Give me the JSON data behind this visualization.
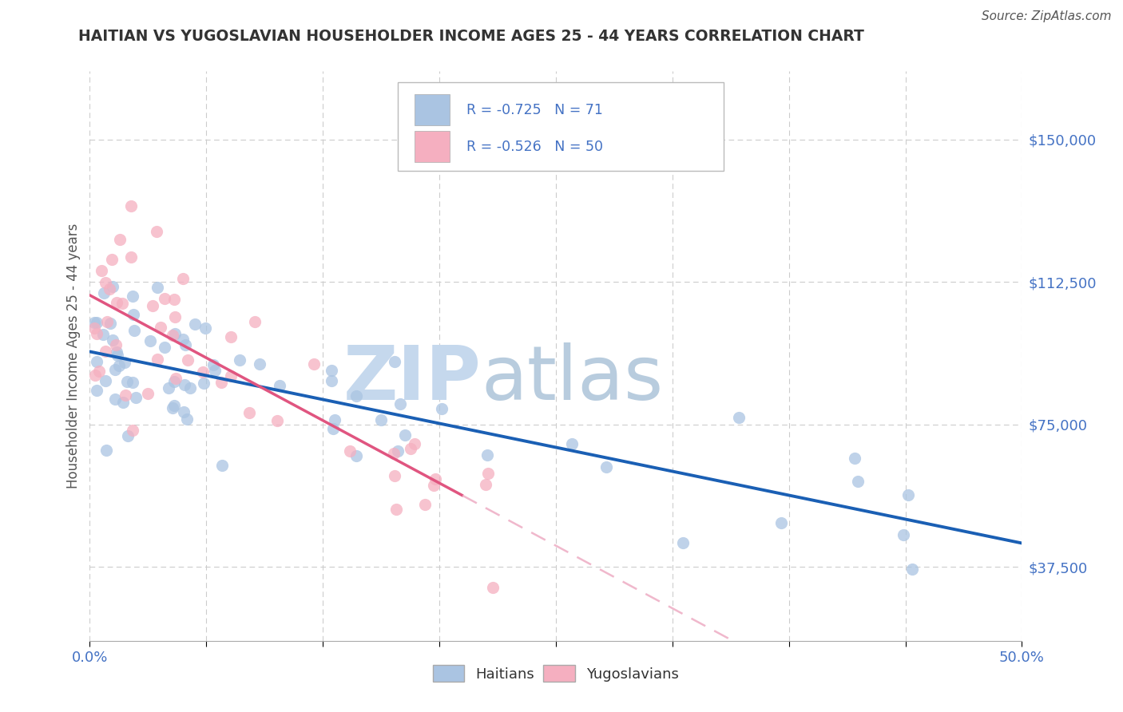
{
  "title": "HAITIAN VS YUGOSLAVIAN HOUSEHOLDER INCOME AGES 25 - 44 YEARS CORRELATION CHART",
  "source_text": "Source: ZipAtlas.com",
  "ylabel": "Householder Income Ages 25 - 44 years",
  "xlim": [
    0.0,
    50.0
  ],
  "ylim": [
    18000,
    168000
  ],
  "xticks": [
    0.0,
    6.25,
    12.5,
    18.75,
    25.0,
    31.25,
    37.5,
    43.75,
    50.0
  ],
  "ytick_positions": [
    37500,
    75000,
    112500,
    150000
  ],
  "ytick_labels": [
    "$37,500",
    "$75,000",
    "$112,500",
    "$150,000"
  ],
  "haitian_color": "#aac4e2",
  "haitian_line_color": "#1a5fb4",
  "yugoslav_color": "#f5afc0",
  "yugoslav_line_color": "#e05580",
  "yugoslav_dash_color": "#f0b8cc",
  "R_haitian": -0.725,
  "N_haitian": 71,
  "R_yugoslav": -0.526,
  "N_yugoslav": 50,
  "background_color": "#ffffff",
  "grid_color": "#cccccc",
  "watermark_zip": "ZIP",
  "watermark_atlas": "atlas",
  "watermark_color_zip": "#c5d8ed",
  "watermark_color_atlas": "#b8ccde",
  "title_color": "#333333",
  "axis_label_color": "#555555",
  "tick_color": "#4472c4",
  "source_color": "#555555",
  "haitian_slope": -1100,
  "haitian_intercept": 96000,
  "yugoslav_slope": -2800,
  "yugoslav_intercept": 108000
}
